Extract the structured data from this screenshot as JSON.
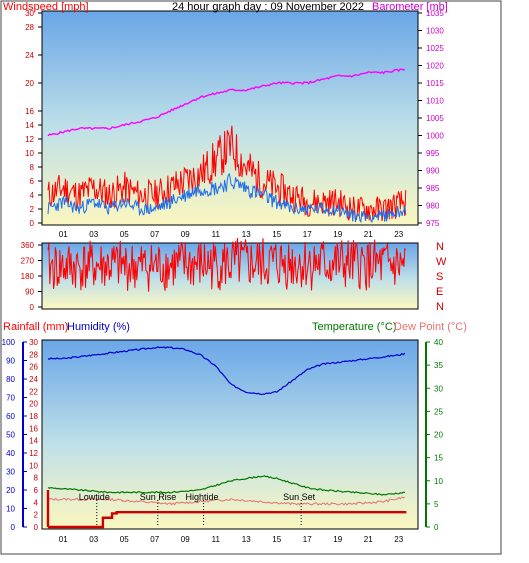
{
  "top": {
    "title": "24 hour graph day : 09 November 2022",
    "left_label": "Windspeed [mph]",
    "right_label": "Barometer [mb]"
  },
  "direction": {
    "compass": [
      "N",
      "W",
      "S",
      "E",
      "N"
    ]
  },
  "bottom": {
    "label_rain": "Rainfall (mm)",
    "label_hum": "Humidity (%)",
    "label_temp": "Temperature (°C)",
    "label_dew": "Dew Point (°C)",
    "events": [
      {
        "label": "Lowtide",
        "hour": 3.2
      },
      {
        "label": "Sun Rise",
        "hour": 7.2
      },
      {
        "label": "Hightide",
        "hour": 10.2
      },
      {
        "label": "Sun Set",
        "hour": 16.6
      }
    ]
  },
  "hours": [
    "01",
    "03",
    "05",
    "07",
    "09",
    "11",
    "13",
    "15",
    "17",
    "19",
    "21",
    "23"
  ],
  "bottom_hours": [
    "01",
    "03",
    "05",
    "07",
    "09",
    "11",
    "13",
    "15",
    "17",
    "19",
    "21",
    "23"
  ],
  "colors": {
    "wind_gust": "#ff0000",
    "wind_avg": "#1e6ee6",
    "baro": "#ff00ff",
    "dir": "#ff0000",
    "hum": "#0000cc",
    "temp": "#007700",
    "dew": "#e87070",
    "rain": "#cc0000"
  },
  "chart_data": [
    {
      "type": "line",
      "name_ref": "windspeed-barometer",
      "x_unit": "hour",
      "ylim_left": [
        0,
        30
      ],
      "ylim_right": [
        975,
        1035
      ],
      "yticks_left": [
        0,
        2,
        4,
        6,
        8,
        10,
        12,
        14,
        16,
        20,
        24,
        28,
        30
      ],
      "yticks_right": [
        975,
        980,
        985,
        990,
        995,
        1000,
        1005,
        1010,
        1015,
        1020,
        1025,
        1030,
        1035
      ],
      "series": [
        {
          "key": "gust",
          "x": [
            0,
            1,
            2,
            3,
            4,
            5,
            6,
            7,
            8,
            9,
            10,
            11,
            12,
            13,
            14,
            15,
            16,
            17,
            18,
            19,
            20,
            21,
            22,
            23.5
          ],
          "values": [
            4,
            5,
            4,
            5,
            4,
            5,
            4,
            4,
            5,
            6,
            7,
            9,
            11,
            8,
            6,
            5,
            4,
            3,
            3,
            3,
            2,
            2,
            2,
            3
          ]
        },
        {
          "key": "avg",
          "x": [
            0,
            1,
            2,
            3,
            4,
            5,
            6,
            7,
            8,
            9,
            10,
            11,
            12,
            13,
            14,
            15,
            16,
            17,
            18,
            19,
            20,
            21,
            22,
            23.5
          ],
          "values": [
            2,
            3,
            2,
            3,
            2,
            3,
            2,
            2,
            3,
            4,
            5,
            5,
            6,
            5,
            4,
            3,
            2,
            2,
            2,
            2,
            1,
            1,
            1,
            2
          ]
        },
        {
          "key": "baro",
          "x": [
            0,
            1,
            2,
            3,
            4,
            5,
            6,
            7,
            8,
            9,
            10,
            11,
            12,
            13,
            14,
            15,
            16,
            17,
            18,
            19,
            20,
            21,
            22,
            23.5
          ],
          "values": [
            1000,
            1001,
            1002,
            1002,
            1002,
            1003,
            1004,
            1005,
            1007,
            1009,
            1011,
            1012,
            1013,
            1013,
            1014,
            1015,
            1015,
            1015,
            1016,
            1017,
            1017,
            1018,
            1018,
            1019
          ]
        }
      ]
    },
    {
      "type": "line",
      "name_ref": "wind-direction",
      "ylim": [
        0,
        360
      ],
      "yticks": [
        0,
        90,
        180,
        270,
        360
      ],
      "series": [
        {
          "key": "dir",
          "x": [
            0,
            2,
            4,
            6,
            8,
            10,
            12,
            14,
            16,
            18,
            20,
            22,
            23.5
          ],
          "values": [
            230,
            235,
            240,
            235,
            240,
            245,
            248,
            250,
            255,
            250,
            245,
            240,
            238
          ]
        }
      ]
    },
    {
      "type": "line",
      "name_ref": "humidity-temperature",
      "ylim_hum": [
        0,
        100
      ],
      "ylim_rain": [
        0,
        30
      ],
      "ylim_temp": [
        0,
        40
      ],
      "yticks_hum": [
        0,
        10,
        20,
        30,
        40,
        50,
        60,
        70,
        80,
        90,
        100
      ],
      "yticks_rain": [
        0,
        2,
        4,
        6,
        8,
        10,
        12,
        14,
        16,
        18,
        20,
        22,
        24,
        26,
        28,
        30
      ],
      "yticks_temp": [
        0,
        5,
        10,
        15,
        20,
        25,
        30,
        35,
        40
      ],
      "series": [
        {
          "key": "hum",
          "x": [
            0,
            1,
            2,
            3,
            4,
            5,
            6,
            7,
            8,
            9,
            10,
            11,
            12,
            13,
            14,
            15,
            16,
            17,
            18,
            19,
            20,
            21,
            22,
            23,
            23.5
          ],
          "values": [
            91,
            91,
            92,
            93,
            94,
            95,
            96,
            97,
            97,
            96,
            93,
            87,
            77,
            73,
            72,
            73,
            79,
            85,
            88,
            89,
            90,
            91,
            92,
            93,
            94
          ]
        },
        {
          "key": "temp",
          "x": [
            0,
            2,
            4,
            6,
            8,
            10,
            11,
            12,
            13,
            14,
            15,
            16,
            17,
            18,
            20,
            22,
            23.5
          ],
          "values": [
            8.5,
            8,
            7.5,
            7.5,
            7.5,
            8,
            9,
            10,
            10.5,
            11,
            10.5,
            9.5,
            8.5,
            8,
            7.5,
            7,
            7.5
          ]
        },
        {
          "key": "dew",
          "x": [
            0,
            2,
            4,
            6,
            8,
            10,
            12,
            14,
            16,
            18,
            20,
            22,
            23.5
          ],
          "values": [
            6,
            6,
            6,
            5.5,
            5,
            5.5,
            6,
            5.5,
            5,
            5,
            5,
            5.5,
            6.5
          ]
        },
        {
          "key": "rain",
          "x": [
            0,
            3.5,
            3.6,
            4.2,
            4.5,
            23.5
          ],
          "values": [
            0,
            0,
            1.5,
            2.2,
            2.4,
            2.4
          ]
        }
      ]
    }
  ]
}
